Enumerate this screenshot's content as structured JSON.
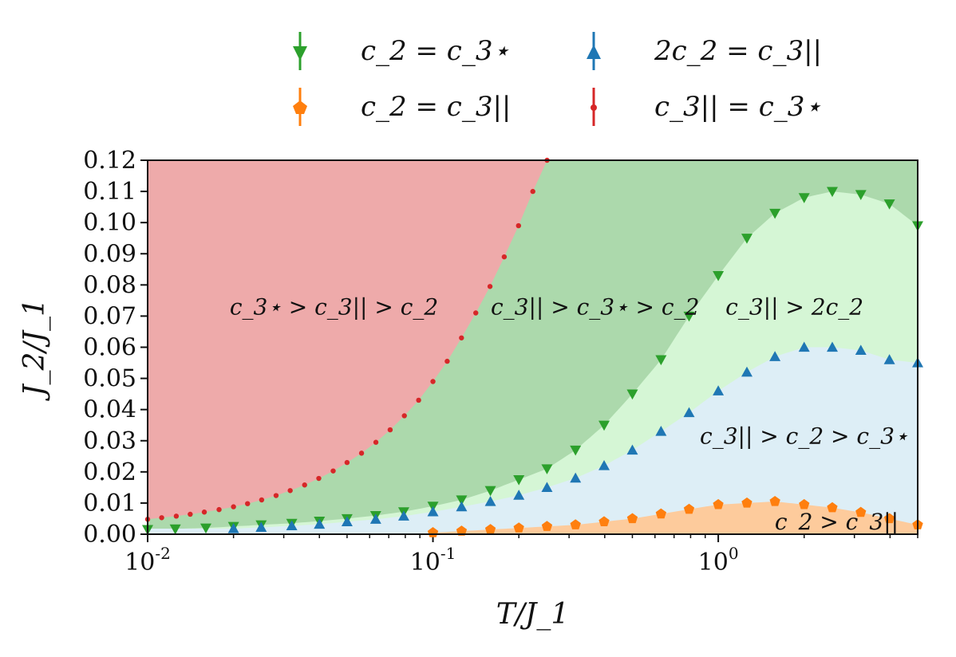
{
  "chart_data": {
    "type": "scatter",
    "xscale": "log",
    "xlim": [
      0.01,
      5.0
    ],
    "ylim": [
      0.0,
      0.12
    ],
    "xlabel": "T/J_1",
    "ylabel": "J_2/J_1",
    "x_tick_labels": [
      "10^-2",
      "10^-1",
      "10^0"
    ],
    "y_tick_labels": [
      "0.00",
      "0.01",
      "0.02",
      "0.03",
      "0.04",
      "0.05",
      "0.06",
      "0.07",
      "0.08",
      "0.09",
      "0.10",
      "0.11",
      "0.12"
    ],
    "legend_placement": "top, outside plot, 2 columns",
    "regions": [
      {
        "label": "c_3⋆ > c_3|| > c_2",
        "color": "#eeaaaa"
      },
      {
        "label": "c_3|| > c_3⋆ > c_2",
        "color": "#acd9ac"
      },
      {
        "label": "c_3|| > 2c_2",
        "color": "#d5f6d5"
      },
      {
        "label": "c_3|| > c_2 > c_3⋆",
        "color": "#ddeef6"
      },
      {
        "label": "c_2 > c_3||",
        "color": "#fdcb9c"
      }
    ],
    "series": [
      {
        "name": "c_2 = c_3⋆",
        "marker": "triangle-down",
        "color": "#2ca02c",
        "x": [
          0.01,
          0.0125,
          0.016,
          0.02,
          0.025,
          0.032,
          0.04,
          0.05,
          0.063,
          0.079,
          0.1,
          0.126,
          0.159,
          0.2,
          0.251,
          0.316,
          0.398,
          0.5,
          0.63,
          0.79,
          1.0,
          1.26,
          1.58,
          2.0,
          2.51,
          3.16,
          3.98,
          5.0
        ],
        "y": [
          0.0015,
          0.0017,
          0.002,
          0.0025,
          0.003,
          0.0035,
          0.0042,
          0.005,
          0.006,
          0.0072,
          0.009,
          0.011,
          0.014,
          0.0175,
          0.021,
          0.027,
          0.035,
          0.045,
          0.056,
          0.07,
          0.083,
          0.095,
          0.103,
          0.108,
          0.11,
          0.109,
          0.106,
          0.099
        ]
      },
      {
        "name": "c_2 = c_3||",
        "marker": "pentagon",
        "color": "#ff7f0e",
        "x": [
          0.1,
          0.126,
          0.159,
          0.2,
          0.251,
          0.316,
          0.398,
          0.5,
          0.63,
          0.79,
          1.0,
          1.26,
          1.58,
          2.0,
          2.51,
          3.16,
          3.98,
          5.0
        ],
        "y": [
          0.0005,
          0.001,
          0.0015,
          0.002,
          0.0025,
          0.003,
          0.004,
          0.005,
          0.0065,
          0.008,
          0.0095,
          0.01,
          0.0105,
          0.0095,
          0.0085,
          0.007,
          0.005,
          0.003
        ]
      },
      {
        "name": "2c_2 = c_3||",
        "marker": "triangle-up",
        "color": "#1f77b4",
        "x": [
          0.02,
          0.025,
          0.032,
          0.04,
          0.05,
          0.063,
          0.079,
          0.1,
          0.126,
          0.159,
          0.2,
          0.251,
          0.316,
          0.398,
          0.5,
          0.63,
          0.79,
          1.0,
          1.26,
          1.58,
          2.0,
          2.51,
          3.16,
          3.98,
          5.0
        ],
        "y": [
          0.0018,
          0.0022,
          0.0027,
          0.0032,
          0.004,
          0.0048,
          0.0058,
          0.0072,
          0.0088,
          0.0105,
          0.0125,
          0.015,
          0.018,
          0.022,
          0.027,
          0.033,
          0.039,
          0.046,
          0.052,
          0.057,
          0.06,
          0.06,
          0.059,
          0.056,
          0.055
        ]
      },
      {
        "name": "c_3|| = c_3⋆",
        "marker": "circle",
        "color": "#d62728",
        "x": [
          0.01,
          0.0112,
          0.0126,
          0.0141,
          0.0158,
          0.0178,
          0.02,
          0.0224,
          0.0251,
          0.0282,
          0.0316,
          0.0355,
          0.0398,
          0.0447,
          0.05,
          0.0562,
          0.0631,
          0.0708,
          0.0794,
          0.0891,
          0.1,
          0.1122,
          0.1259,
          0.1413,
          0.1585,
          0.1778,
          0.1995,
          0.2239,
          0.2512
        ],
        "y": [
          0.0048,
          0.0053,
          0.0058,
          0.0064,
          0.0071,
          0.0079,
          0.0088,
          0.0098,
          0.011,
          0.0124,
          0.014,
          0.0158,
          0.0179,
          0.0203,
          0.023,
          0.026,
          0.0295,
          0.0335,
          0.038,
          0.043,
          0.049,
          0.0555,
          0.063,
          0.071,
          0.0795,
          0.089,
          0.099,
          0.11,
          0.12
        ]
      }
    ]
  }
}
